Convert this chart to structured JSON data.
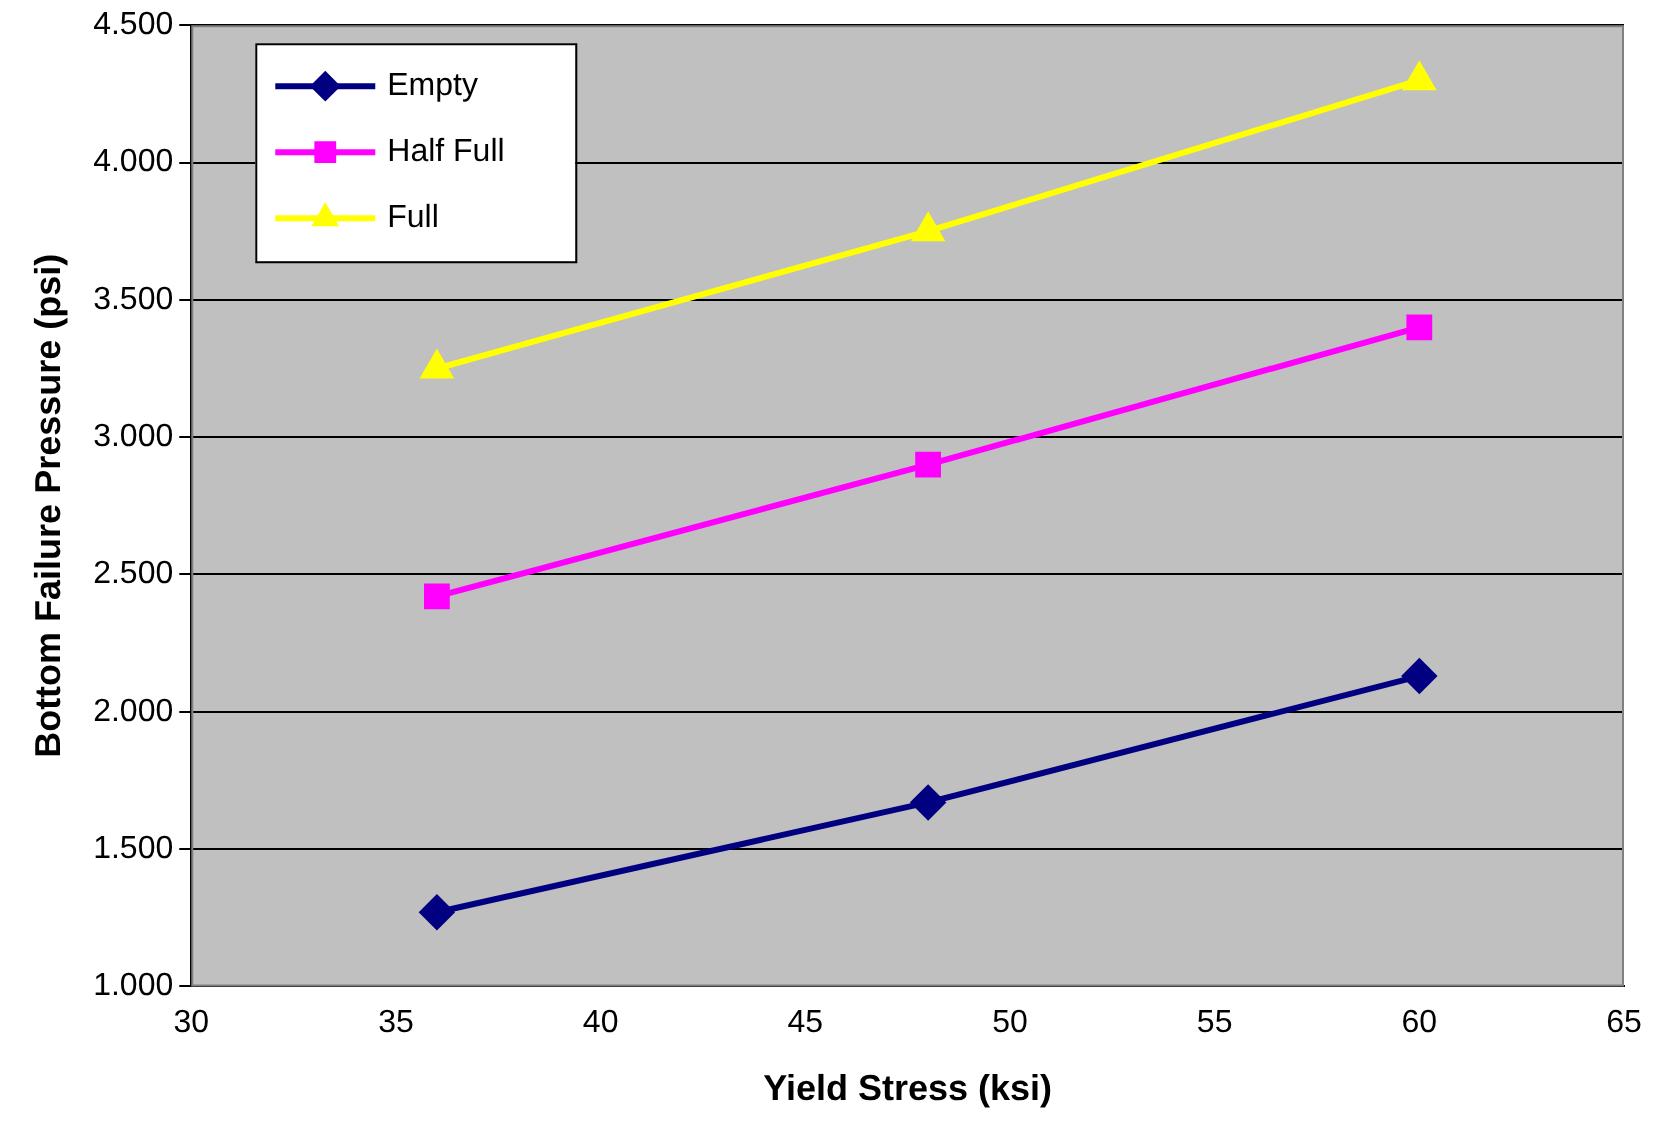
{
  "chart_data": {
    "type": "line",
    "xlabel": "Yield Stress (ksi)",
    "ylabel": "Bottom Failure Pressure (psi)",
    "x": [
      36,
      48,
      60
    ],
    "series": [
      {
        "name": "Empty",
        "color": "#000080",
        "marker": "diamond",
        "values": [
          1.27,
          1.67,
          2.13
        ]
      },
      {
        "name": "Half Full",
        "color": "#ff00ff",
        "marker": "square",
        "values": [
          2.42,
          2.9,
          3.4
        ]
      },
      {
        "name": "Full",
        "color": "#ffff00",
        "marker": "triangle",
        "values": [
          3.25,
          3.75,
          4.3
        ]
      }
    ],
    "xlim": [
      30,
      65
    ],
    "xticks": [
      30,
      35,
      40,
      45,
      50,
      55,
      60,
      65
    ],
    "ylim": [
      1,
      4.5
    ],
    "yticks": [
      {
        "value": 1,
        "label": "1.000"
      },
      {
        "value": 1.5,
        "label": "1.500"
      },
      {
        "value": 2,
        "label": "2.000"
      },
      {
        "value": 2.5,
        "label": "2.500"
      },
      {
        "value": 3,
        "label": "3.000"
      },
      {
        "value": 3.5,
        "label": "3.500"
      },
      {
        "value": 4,
        "label": "4.000"
      },
      {
        "value": 4.5,
        "label": "4.500"
      }
    ],
    "grid": "y",
    "legend": "top left",
    "line_style": "solid"
  }
}
